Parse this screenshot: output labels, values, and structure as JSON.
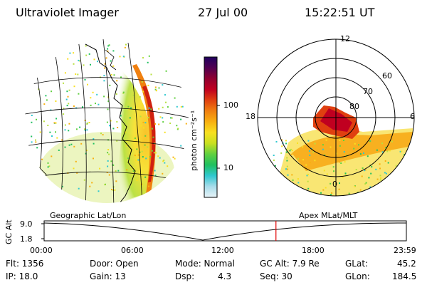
{
  "header": {
    "instrument": "Ultraviolet Imager",
    "date": "27 Jul 00",
    "time": "15:22:51 UT"
  },
  "colorbar": {
    "unit_label": "photon cm⁻²s⁻¹",
    "ticks": [
      "100",
      "10"
    ],
    "gradient": [
      "#e8f4f8",
      "#a8dcea",
      "#30c8d0",
      "#20c060",
      "#60d040",
      "#c8e020",
      "#f8e020",
      "#f8b010",
      "#f08010",
      "#e04010",
      "#c00020",
      "#900030",
      "#500050",
      "#200060"
    ]
  },
  "geo_panel": {
    "label": "Geographic Lat/Lon"
  },
  "polar_panel": {
    "label": "Apex MLat/MLT",
    "mlt_labels": {
      "top": "12",
      "left": "18",
      "right": "6",
      "bottom": "0"
    },
    "lat_labels": [
      "60",
      "70",
      "80"
    ]
  },
  "altitude_plot": {
    "y_label": "GC Alt",
    "y_ticks": [
      "9.0",
      "1.8"
    ],
    "x_ticks": [
      "00:00",
      "06:00",
      "12:00",
      "18:00",
      "23:59"
    ],
    "current_time_fraction": 0.64,
    "marker_color": "#e00000"
  },
  "info": {
    "flt": "Flt: 1356",
    "ip": "IP: 18.0",
    "door": "Door: Open",
    "gain": "Gain: 13",
    "mode": "Mode: Normal",
    "dsp": "Dsp:",
    "dsp_value": "4.3",
    "gc_alt": "GC Alt: 7.9 Re",
    "seq": "Seq: 30",
    "glat": "GLat:",
    "glat_value": "45.2",
    "glon": "GLon:",
    "glon_value": "184.5"
  }
}
